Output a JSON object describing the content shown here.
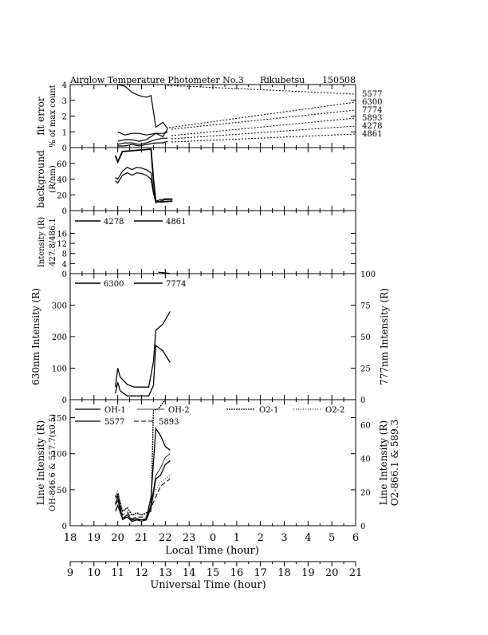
{
  "title": {
    "left": "Airglow Temperature Photometer No.3",
    "site": "Rikubetsu",
    "date": "150508"
  },
  "axes": {
    "local_time_label": "Local Time (hour)",
    "universal_time_label": "Universal Time (hour)",
    "local_ticks": [
      "18",
      "19",
      "20",
      "21",
      "22",
      "23",
      "0",
      "1",
      "2",
      "3",
      "4",
      "5",
      "6"
    ],
    "universal_ticks": [
      "9",
      "10",
      "11",
      "12",
      "13",
      "14",
      "15",
      "16",
      "17",
      "18",
      "19",
      "20",
      "21"
    ]
  },
  "chart_data": [
    {
      "type": "line",
      "id": "fit_error",
      "ylabel": "fit error",
      "ylabel2": "% of max count",
      "ylim": [
        0,
        4
      ],
      "yticks": [
        "0",
        "1",
        "2",
        "3",
        "4"
      ],
      "series_labels": [
        "5577",
        "6300",
        "7774",
        "5893",
        "4278",
        "4861"
      ],
      "series": [
        {
          "x": [
            20.0,
            20.3,
            20.6,
            20.9,
            21.2,
            21.4,
            21.6,
            21.9,
            22.1
          ],
          "y": [
            4.0,
            3.9,
            3.5,
            3.3,
            3.2,
            3.3,
            1.3,
            1.6,
            1.2
          ]
        },
        {
          "x": [
            20.0,
            20.3,
            20.6,
            20.9,
            21.2,
            21.6,
            21.9,
            22.1
          ],
          "y": [
            1.0,
            0.8,
            0.9,
            0.9,
            0.8,
            0.9,
            0.7,
            1.2
          ]
        },
        {
          "x": [
            20.0,
            20.3,
            20.6,
            20.9,
            21.2,
            21.6,
            21.9,
            22.1
          ],
          "y": [
            0.4,
            0.5,
            0.5,
            0.4,
            0.5,
            0.9,
            0.9,
            1.0
          ]
        },
        {
          "x": [
            20.0,
            20.3,
            20.6,
            20.9,
            21.2,
            21.6,
            21.9,
            22.1
          ],
          "y": [
            0.2,
            0.3,
            0.3,
            0.2,
            0.3,
            0.5,
            0.6,
            0.6
          ]
        },
        {
          "x": [
            20.0,
            20.3,
            20.6,
            20.9,
            21.2,
            21.6,
            21.9,
            22.1
          ],
          "y": [
            0.1,
            0.1,
            0.2,
            0.1,
            0.2,
            0.3,
            0.3,
            0.4
          ]
        }
      ]
    },
    {
      "type": "line",
      "id": "background",
      "ylabel": "background",
      "ylabel2": "(R/nm)",
      "ylim": [
        0,
        80
      ],
      "yticks": [
        "0",
        "20",
        "40",
        "60"
      ],
      "series": [
        {
          "x": [
            19.9,
            20.0,
            20.2,
            20.4,
            20.6,
            20.8,
            21.0,
            21.2,
            21.4,
            21.5,
            21.6,
            21.8,
            22.0,
            22.3
          ],
          "y": [
            38,
            35,
            45,
            48,
            45,
            48,
            47,
            45,
            40,
            22,
            10,
            12,
            14,
            14
          ]
        },
        {
          "x": [
            19.9,
            20.0,
            20.2,
            20.4,
            20.6,
            20.8,
            21.0,
            21.2,
            21.4,
            21.5,
            21.6,
            21.8,
            22.0,
            22.3
          ],
          "y": [
            42,
            40,
            50,
            55,
            52,
            55,
            54,
            52,
            48,
            25,
            12,
            14,
            15,
            15
          ]
        },
        {
          "x": [
            19.9,
            20.0,
            20.2,
            21.4,
            21.5,
            21.6,
            21.8,
            22.3
          ],
          "y": [
            70,
            62,
            75,
            78,
            40,
            12,
            11,
            12
          ]
        }
      ]
    },
    {
      "type": "line",
      "id": "blue_lines",
      "ylabel": "Intensity (R)",
      "ylabel2": "427.8/486.1",
      "ylim": [
        0,
        25
      ],
      "yticks": [
        "0",
        "4",
        "8",
        "12",
        "16"
      ],
      "legend": [
        "4278",
        "4861"
      ],
      "series": [
        {
          "name": "4278",
          "x": [
            21.7,
            22.2
          ],
          "y": [
            0.6,
            0.1
          ]
        }
      ]
    },
    {
      "type": "line",
      "id": "oi_lines",
      "ylabel": "630nm Intensity (R)",
      "ylabel_right": "777nm Intensity (R)",
      "ylim": [
        0,
        400
      ],
      "ylim_right": [
        0,
        100
      ],
      "yticks": [
        "0",
        "100",
        "200",
        "300"
      ],
      "yticks_right": [
        "0",
        "25",
        "50",
        "75",
        "100"
      ],
      "legend": [
        "6300",
        "7774"
      ],
      "series": [
        {
          "name": "6300",
          "x": [
            19.9,
            20.0,
            20.1,
            20.4,
            20.7,
            21.0,
            21.3,
            21.5,
            21.6,
            21.9,
            22.2
          ],
          "y": [
            20,
            55,
            28,
            12,
            12,
            12,
            12,
            45,
            172,
            155,
            118
          ]
        },
        {
          "name": "7774",
          "x": [
            19.9,
            20.0,
            20.1,
            20.4,
            20.7,
            21.0,
            21.3,
            21.5,
            21.6,
            21.9,
            22.2
          ],
          "y": [
            10,
            25,
            18,
            12,
            10,
            10,
            10,
            30,
            55,
            60,
            70
          ]
        }
      ]
    },
    {
      "type": "line",
      "id": "line_intensity",
      "ylabel": "Line Intensity (R)",
      "ylabel2": "OH-846.6 & 557.7(x0.5)",
      "ylabel_right": "Line Intensity (R)",
      "ylabel_right2": "O2-866.1 & 589.3",
      "ylim": [
        0,
        175
      ],
      "ylim_right": [
        0,
        75
      ],
      "yticks": [
        "0",
        "50",
        "100",
        "150"
      ],
      "yticks_right": [
        "0",
        "20",
        "40",
        "60"
      ],
      "legend": [
        "OH-1",
        "OH-2",
        "O2-1",
        "O2-2",
        "5577",
        "5893"
      ],
      "series": [
        {
          "name": "OH-1",
          "x": [
            19.9,
            20.0,
            20.2,
            20.4,
            20.6,
            20.8,
            21.0,
            21.2,
            21.4,
            21.6,
            21.8,
            22.0,
            22.2
          ],
          "y": [
            30,
            40,
            10,
            15,
            8,
            10,
            8,
            10,
            40,
            135,
            125,
            110,
            105
          ]
        },
        {
          "name": "OH-2",
          "x": [
            19.9,
            20.0,
            20.2,
            20.4,
            20.6,
            20.8,
            21.0,
            21.2,
            21.4,
            21.6,
            21.8,
            22.0,
            22.2
          ],
          "y": [
            28,
            35,
            8,
            12,
            6,
            8,
            6,
            8,
            30,
            70,
            80,
            95,
            100
          ]
        },
        {
          "name": "O2-1",
          "x": [
            19.9,
            20.0,
            20.2,
            20.4,
            20.6,
            20.8,
            21.0,
            21.2,
            21.4,
            21.5,
            21.7,
            22.0,
            22.2
          ],
          "y": [
            40,
            45,
            20,
            25,
            15,
            18,
            15,
            18,
            20,
            160,
            162,
            175,
            175
          ]
        },
        {
          "name": "O2-2",
          "x": [
            19.9,
            20.0,
            20.2,
            20.4,
            20.6,
            20.8,
            21.0,
            21.2,
            21.4,
            21.6,
            21.8,
            22.0,
            22.2
          ],
          "y": [
            42,
            48,
            22,
            20,
            15,
            15,
            15,
            15,
            30,
            50,
            60,
            65,
            70
          ]
        },
        {
          "name": "5577",
          "x": [
            19.9,
            20.0,
            20.2,
            20.4,
            20.6,
            20.8,
            21.0,
            21.2,
            21.4,
            21.6,
            21.8,
            22.0,
            22.2
          ],
          "y": [
            20,
            28,
            10,
            12,
            6,
            8,
            8,
            8,
            25,
            65,
            70,
            85,
            90
          ]
        },
        {
          "name": "5893",
          "x": [
            19.9,
            20.0,
            20.2,
            20.4,
            20.6,
            20.8,
            21.0,
            21.2,
            21.4,
            21.6,
            21.8,
            22.0,
            22.2
          ],
          "y": [
            38,
            42,
            15,
            18,
            10,
            12,
            12,
            12,
            25,
            40,
            55,
            60,
            65
          ]
        }
      ]
    }
  ]
}
